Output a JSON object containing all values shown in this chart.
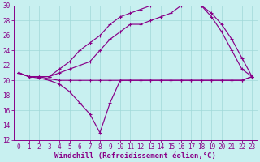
{
  "xlabel": "Windchill (Refroidissement éolien,°C)",
  "bg_color": "#c8f0f0",
  "grid_color": "#a0d8d8",
  "line_color": "#880088",
  "xlim": [
    -0.5,
    23.5
  ],
  "ylim": [
    12,
    30
  ],
  "yticks": [
    12,
    14,
    16,
    18,
    20,
    22,
    24,
    26,
    28,
    30
  ],
  "xticks": [
    0,
    1,
    2,
    3,
    4,
    5,
    6,
    7,
    8,
    9,
    10,
    11,
    12,
    13,
    14,
    15,
    16,
    17,
    18,
    19,
    20,
    21,
    22,
    23
  ],
  "line1_x": [
    0,
    1,
    2,
    3,
    4,
    5,
    6,
    7,
    8,
    9,
    10,
    11,
    12,
    13,
    14,
    15,
    16,
    17,
    18,
    19,
    20,
    21,
    22,
    23
  ],
  "line1_y": [
    21,
    20.5,
    20.5,
    20.2,
    20,
    20,
    20,
    20,
    20,
    20,
    20,
    20,
    20,
    20,
    20,
    20,
    20,
    20,
    20,
    20,
    20,
    20,
    20,
    20.5
  ],
  "line2_x": [
    0,
    1,
    2,
    3,
    4,
    5,
    6,
    7,
    8,
    9,
    10,
    11,
    12,
    13,
    14,
    15,
    16,
    17,
    18,
    19,
    20,
    21,
    22,
    23
  ],
  "line2_y": [
    21,
    20.5,
    20.3,
    20,
    19.5,
    18.5,
    17,
    15.5,
    13,
    17,
    20,
    20,
    20,
    20,
    20,
    20,
    20,
    20,
    20,
    20,
    20,
    20,
    20,
    20.5
  ],
  "line3_x": [
    0,
    1,
    2,
    3,
    4,
    5,
    6,
    7,
    8,
    9,
    10,
    11,
    12,
    13,
    14,
    15,
    16,
    17,
    18,
    19,
    20,
    21,
    22,
    23
  ],
  "line3_y": [
    21,
    20.5,
    20.5,
    20.5,
    21,
    21.5,
    22,
    22.5,
    24,
    25.5,
    26.5,
    27.5,
    27.5,
    28,
    28.5,
    29,
    30,
    30.5,
    30,
    29,
    27.5,
    25.5,
    23,
    20.5
  ],
  "line4_x": [
    0,
    1,
    2,
    3,
    4,
    5,
    6,
    7,
    8,
    9,
    10,
    11,
    12,
    13,
    14,
    15,
    16,
    17,
    18,
    19,
    20,
    21,
    22,
    23
  ],
  "line4_y": [
    21,
    20.5,
    20.5,
    20.5,
    21.5,
    22.5,
    24,
    25,
    26,
    27.5,
    28.5,
    29,
    29.5,
    30,
    30.5,
    30.5,
    30.5,
    30.5,
    30,
    28.5,
    26.5,
    24,
    21.5,
    20.5
  ],
  "marker": "+",
  "markersize": 3.5,
  "linewidth": 0.85,
  "xlabel_fontsize": 6.5,
  "tick_fontsize": 5.5
}
